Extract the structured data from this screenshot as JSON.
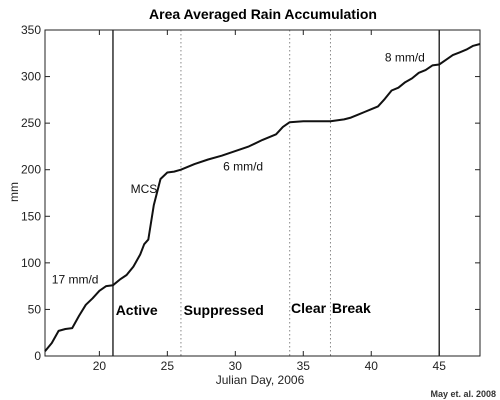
{
  "chart_data": {
    "type": "line",
    "title": "Area Averaged Rain Accumulation",
    "xlabel": "Julian Day, 2006",
    "ylabel": "mm",
    "xlim": [
      16,
      48
    ],
    "ylim": [
      0,
      350
    ],
    "xticks": [
      20,
      25,
      30,
      35,
      40,
      45
    ],
    "yticks": [
      0,
      50,
      100,
      150,
      200,
      250,
      300,
      350
    ],
    "grid": false,
    "series": [
      {
        "x": [
          16,
          16.5,
          17,
          17.5,
          18,
          18.5,
          19,
          19.5,
          20,
          20.5,
          21,
          21.5,
          22,
          22.5,
          23,
          23.3,
          23.6,
          24,
          24.5,
          25,
          25.5,
          26,
          27,
          28,
          29,
          30,
          31,
          32,
          33,
          33.5,
          34,
          35,
          36,
          37,
          38,
          38.5,
          39,
          39.5,
          40,
          40.5,
          41,
          41.5,
          42,
          42.5,
          43,
          43.5,
          44,
          44.5,
          45,
          45.5,
          46,
          46.5,
          47,
          47.5,
          48
        ],
        "y": [
          5,
          14,
          27,
          29,
          30,
          43,
          55,
          62,
          70,
          75,
          76,
          82,
          87,
          96,
          109,
          120,
          125,
          162,
          190,
          197,
          198,
          200,
          206,
          211,
          215,
          220,
          225,
          232,
          238,
          246,
          251,
          252,
          252,
          252,
          254,
          256,
          259,
          262,
          265,
          268,
          276,
          285,
          288,
          294,
          298,
          304,
          307,
          312,
          313,
          318,
          323,
          326,
          329,
          333,
          335
        ]
      }
    ],
    "vlines": [
      {
        "x": 21,
        "style": "solid"
      },
      {
        "x": 26,
        "style": "dotted"
      },
      {
        "x": 34,
        "style": "dotted"
      },
      {
        "x": 37,
        "style": "dotted"
      },
      {
        "x": 45,
        "style": "solid"
      }
    ],
    "annotations": [
      {
        "text": "17 mm/d",
        "x": 16.5,
        "y": 78
      },
      {
        "text": "MCS",
        "x": 22.3,
        "y": 175
      },
      {
        "text": "6 mm/d",
        "x": 29.1,
        "y": 199
      },
      {
        "text": "8 mm/d",
        "x": 41,
        "y": 316
      }
    ],
    "phases": [
      {
        "text": "Active",
        "x": 21.2,
        "y": 44
      },
      {
        "text": "Suppressed",
        "x": 26.2,
        "y": 44
      },
      {
        "text": "Clear",
        "x": 34.1,
        "y": 46
      },
      {
        "text": "Break",
        "x": 37.1,
        "y": 46
      }
    ]
  },
  "credit": "May et. al. 2008"
}
